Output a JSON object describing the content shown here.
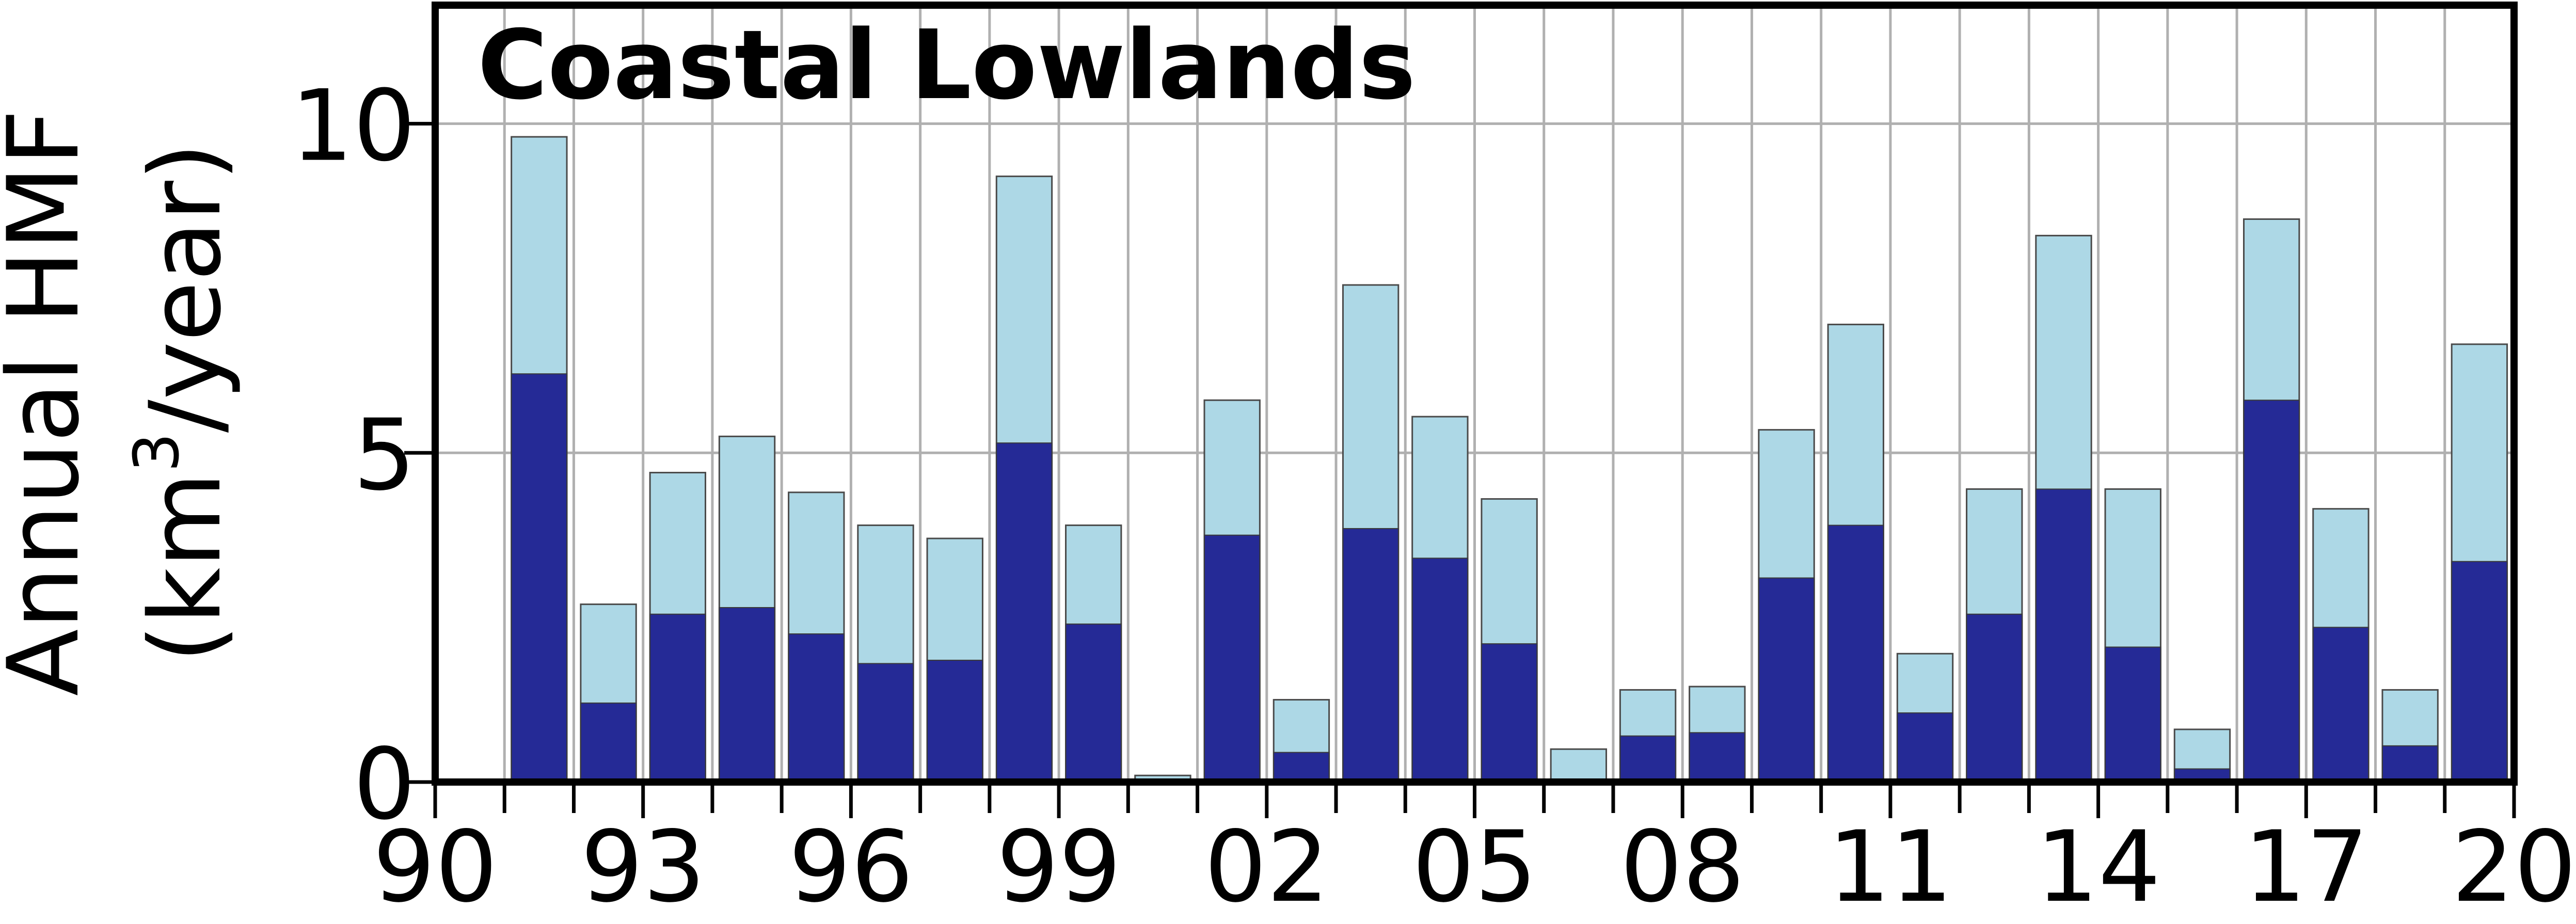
{
  "chart_data": {
    "type": "bar",
    "title": "Coastal Lowlands",
    "ylabel_line1": "Annual HMF",
    "ylabel_line2_pre": "(km",
    "ylabel_line2_sup": "3",
    "ylabel_line2_post": "/year)",
    "x_tick_labels": [
      "90",
      "93",
      "96",
      "99",
      "02",
      "05",
      "08",
      "11",
      "14",
      "17",
      "20"
    ],
    "y_tick_labels": [
      "0",
      "5",
      "10"
    ],
    "y_ticks": [
      0,
      5,
      10
    ],
    "ylim": [
      0,
      11.8
    ],
    "xlim": [
      1990,
      2020
    ],
    "grid": true,
    "categories": [
      1991,
      1992,
      1993,
      1994,
      1995,
      1996,
      1997,
      1998,
      1999,
      2000,
      2001,
      2002,
      2003,
      2004,
      2005,
      2006,
      2007,
      2008,
      2009,
      2010,
      2011,
      2012,
      2013,
      2014,
      2015,
      2016,
      2017,
      2018,
      2019
    ],
    "series": [
      {
        "values": [
          9.8,
          2.7,
          4.7,
          5.25,
          4.4,
          3.9,
          3.7,
          9.2,
          3.9,
          0.1,
          5.8,
          1.25,
          7.55,
          5.55,
          4.3,
          0.5,
          1.4,
          1.45,
          5.35,
          6.95,
          1.95,
          4.45,
          8.3,
          4.45,
          0.8,
          8.55,
          4.15,
          1.4,
          6.65
        ],
        "color": "#add8e6"
      },
      {
        "values": [
          6.2,
          1.2,
          2.55,
          2.65,
          2.25,
          1.8,
          1.85,
          5.15,
          2.4,
          0.0,
          3.75,
          0.45,
          3.85,
          3.4,
          2.1,
          0.0,
          0.7,
          0.75,
          3.1,
          3.9,
          1.05,
          2.55,
          4.45,
          2.05,
          0.2,
          5.8,
          2.35,
          0.55,
          3.35
        ],
        "color": "#252a96"
      }
    ]
  }
}
